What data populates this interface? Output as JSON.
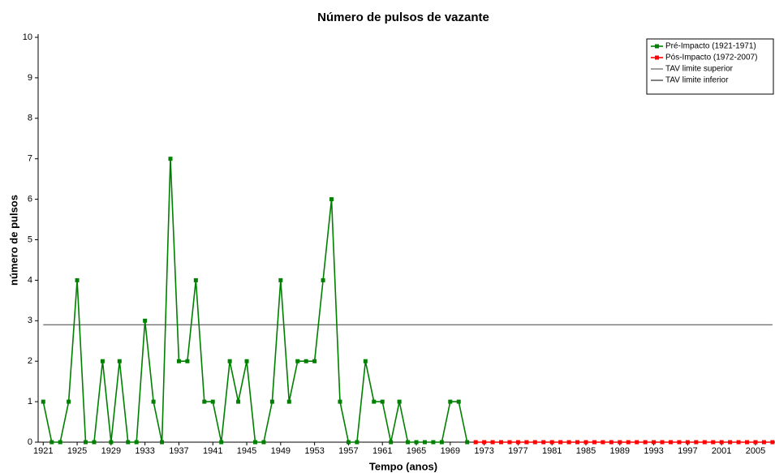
{
  "chart_data": {
    "type": "line",
    "title": "Número de pulsos de vazante",
    "xlabel": "Tempo (anos)",
    "ylabel": "número de pulsos",
    "x": [
      1921,
      1922,
      1923,
      1924,
      1925,
      1926,
      1927,
      1928,
      1929,
      1930,
      1931,
      1932,
      1933,
      1934,
      1935,
      1936,
      1937,
      1938,
      1939,
      1940,
      1941,
      1942,
      1943,
      1944,
      1945,
      1946,
      1947,
      1948,
      1949,
      1950,
      1951,
      1952,
      1953,
      1954,
      1955,
      1956,
      1957,
      1958,
      1959,
      1960,
      1961,
      1962,
      1963,
      1964,
      1965,
      1966,
      1967,
      1968,
      1969,
      1970,
      1971,
      1972,
      1973,
      1974,
      1975,
      1976,
      1977,
      1978,
      1979,
      1980,
      1981,
      1982,
      1983,
      1984,
      1985,
      1986,
      1987,
      1988,
      1989,
      1990,
      1991,
      1992,
      1993,
      1994,
      1995,
      1996,
      1997,
      1998,
      1999,
      2000,
      2001,
      2002,
      2003,
      2004,
      2005,
      2006,
      2007
    ],
    "series": [
      {
        "name": "Pré-Impacto (1921-1971)",
        "color": "#008000",
        "marker": true,
        "values": [
          1,
          0,
          0,
          1,
          4,
          0,
          0,
          2,
          0,
          2,
          0,
          0,
          3,
          1,
          0,
          7,
          2,
          2,
          4,
          1,
          1,
          0,
          2,
          1,
          2,
          0,
          0,
          1,
          4,
          1,
          2,
          2,
          2,
          4,
          6,
          1,
          0,
          0,
          2,
          1,
          1,
          0,
          1,
          0,
          0,
          0,
          0,
          0,
          1,
          1,
          0,
          null,
          null,
          null,
          null,
          null,
          null,
          null,
          null,
          null,
          null,
          null,
          null,
          null,
          null,
          null,
          null,
          null,
          null,
          null,
          null,
          null,
          null,
          null,
          null,
          null,
          null,
          null,
          null,
          null,
          null,
          null,
          null,
          null,
          null,
          null,
          null
        ]
      },
      {
        "name": "Pós-Impacto (1972-2007)",
        "color": "#ff0000",
        "marker": true,
        "values": [
          null,
          null,
          null,
          null,
          null,
          null,
          null,
          null,
          null,
          null,
          null,
          null,
          null,
          null,
          null,
          null,
          null,
          null,
          null,
          null,
          null,
          null,
          null,
          null,
          null,
          null,
          null,
          null,
          null,
          null,
          null,
          null,
          null,
          null,
          null,
          null,
          null,
          null,
          null,
          null,
          null,
          null,
          null,
          null,
          null,
          null,
          null,
          null,
          null,
          null,
          null,
          0,
          0,
          0,
          0,
          0,
          0,
          0,
          0,
          0,
          0,
          0,
          0,
          0,
          0,
          0,
          0,
          0,
          0,
          0,
          0,
          0,
          0,
          0,
          0,
          0,
          0,
          0,
          0,
          0,
          0,
          0,
          0,
          0,
          0,
          0,
          0
        ]
      },
      {
        "name": "TAV limite superior",
        "color": "#404040",
        "marker": false,
        "values": [
          2.9,
          2.9,
          2.9,
          2.9,
          2.9,
          2.9,
          2.9,
          2.9,
          2.9,
          2.9,
          2.9,
          2.9,
          2.9,
          2.9,
          2.9,
          2.9,
          2.9,
          2.9,
          2.9,
          2.9,
          2.9,
          2.9,
          2.9,
          2.9,
          2.9,
          2.9,
          2.9,
          2.9,
          2.9,
          2.9,
          2.9,
          2.9,
          2.9,
          2.9,
          2.9,
          2.9,
          2.9,
          2.9,
          2.9,
          2.9,
          2.9,
          2.9,
          2.9,
          2.9,
          2.9,
          2.9,
          2.9,
          2.9,
          2.9,
          2.9,
          2.9,
          2.9,
          2.9,
          2.9,
          2.9,
          2.9,
          2.9,
          2.9,
          2.9,
          2.9,
          2.9,
          2.9,
          2.9,
          2.9,
          2.9,
          2.9,
          2.9,
          2.9,
          2.9,
          2.9,
          2.9,
          2.9,
          2.9,
          2.9,
          2.9,
          2.9,
          2.9,
          2.9,
          2.9,
          2.9,
          2.9,
          2.9,
          2.9,
          2.9,
          2.9,
          2.9,
          2.9
        ]
      },
      {
        "name": "TAV limite inferior",
        "color": "#000000",
        "marker": false,
        "values": [
          0,
          0,
          0,
          0,
          0,
          0,
          0,
          0,
          0,
          0,
          0,
          0,
          0,
          0,
          0,
          0,
          0,
          0,
          0,
          0,
          0,
          0,
          0,
          0,
          0,
          0,
          0,
          0,
          0,
          0,
          0,
          0,
          0,
          0,
          0,
          0,
          0,
          0,
          0,
          0,
          0,
          0,
          0,
          0,
          0,
          0,
          0,
          0,
          0,
          0,
          0,
          0,
          0,
          0,
          0,
          0,
          0,
          0,
          0,
          0,
          0,
          0,
          0,
          0,
          0,
          0,
          0,
          0,
          0,
          0,
          0,
          0,
          0,
          0,
          0,
          0,
          0,
          0,
          0,
          0,
          0,
          0,
          0,
          0,
          0,
          0,
          0
        ]
      }
    ],
    "xlim": [
      1920.4,
      2007.3
    ],
    "xticks": [
      1921,
      1925,
      1929,
      1933,
      1937,
      1941,
      1945,
      1949,
      1953,
      1957,
      1961,
      1965,
      1969,
      1973,
      1977,
      1981,
      1985,
      1989,
      1993,
      1997,
      2001,
      2005
    ],
    "ylim": [
      0,
      10
    ],
    "yticks": [
      0,
      1,
      2,
      3,
      4,
      5,
      6,
      7,
      8,
      9,
      10
    ],
    "legend": "upper right",
    "grid": false
  }
}
